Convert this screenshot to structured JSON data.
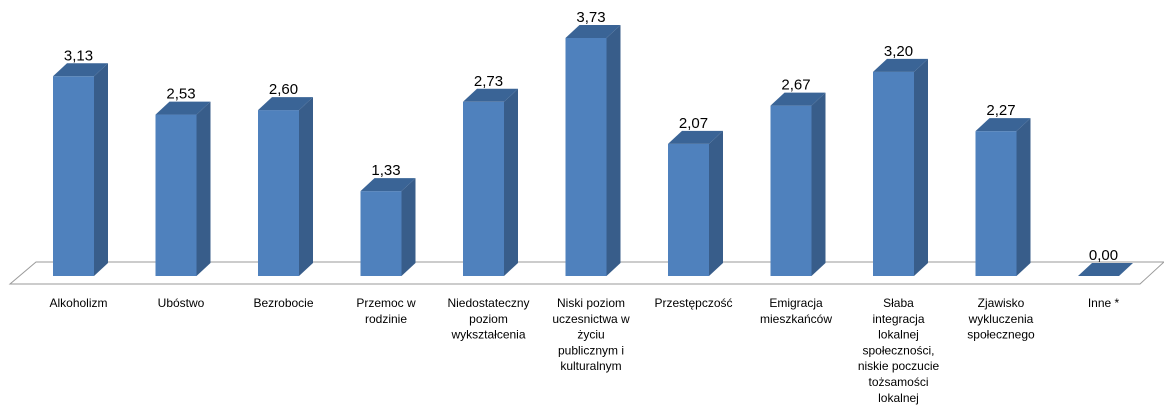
{
  "chart_data": {
    "type": "bar",
    "three_d": true,
    "categories": [
      "Alkoholizm",
      "Ubóstwo",
      "Bezrobocie",
      "Przemoc w rodzinie",
      "Niedostateczny poziom wykształcenia",
      "Niski poziom uczesnictwa w życiu publicznym i kulturalnym",
      "Przestępczość",
      "Emigracja mieszkańców",
      "Słaba integracja lokalnej społeczności, niskie poczucie tożsamości lokalnej",
      "Zjawisko wykluczenia społecznego",
      "Inne *"
    ],
    "category_lines": [
      [
        "Alkoholizm"
      ],
      [
        "Ubóstwo"
      ],
      [
        "Bezrobocie"
      ],
      [
        "Przemoc w",
        "rodzinie"
      ],
      [
        "Niedostateczny",
        "poziom",
        "wykształcenia"
      ],
      [
        "Niski poziom",
        "uczesnictwa w",
        "życiu",
        "publicznym i",
        "kulturalnym"
      ],
      [
        "Przestępczość"
      ],
      [
        "Emigracja",
        "mieszkańców"
      ],
      [
        "Słaba",
        "integracja",
        "lokalnej",
        "społeczności,",
        "niskie poczucie",
        "tożsamości",
        "lokalnej"
      ],
      [
        "Zjawisko",
        "wykluczenia",
        "społecznego"
      ],
      [
        "Inne *"
      ]
    ],
    "values": [
      3.13,
      2.53,
      2.6,
      1.33,
      2.73,
      3.73,
      2.07,
      2.67,
      3.2,
      2.27,
      0.0
    ],
    "value_labels": [
      "3,13",
      "2,53",
      "2,60",
      "1,33",
      "2,73",
      "3,73",
      "2,07",
      "2,67",
      "3,20",
      "2,27",
      "0,00"
    ],
    "ylim": [
      0,
      3.73
    ],
    "title": "",
    "xlabel": "",
    "ylabel": "",
    "grid": false,
    "legend": "none",
    "colors": {
      "bar_front": "#4f81bd",
      "bar_side": "#385d8a",
      "bar_top": "#3a6496",
      "floor_stroke": "#9a9a9a"
    }
  }
}
